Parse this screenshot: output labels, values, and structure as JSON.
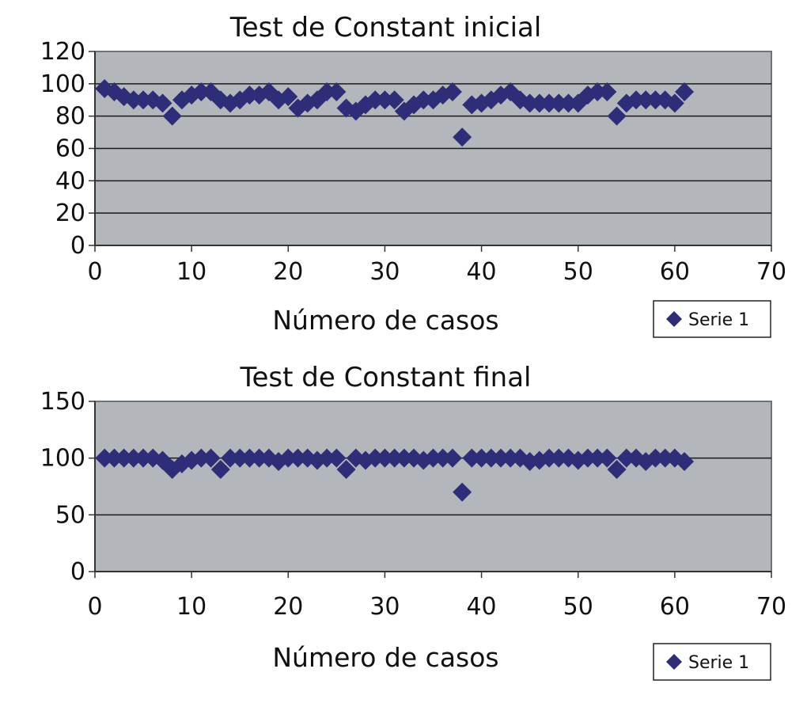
{
  "charts": [
    {
      "chart_data": {
        "type": "scatter",
        "title": "Test de Constant inicial",
        "xlabel": "Número de casos",
        "ylabel": "",
        "xlim": [
          0,
          70
        ],
        "ylim": [
          0,
          120
        ],
        "xticks": [
          "0",
          "10",
          "20",
          "30",
          "40",
          "50",
          "60",
          "70"
        ],
        "yticks": [
          "0",
          "20",
          "40",
          "60",
          "80",
          "100",
          "120"
        ],
        "grid": "horizontal",
        "legend_position": "bottom-right",
        "series": [
          {
            "name": "Serie 1",
            "color": "#2e2e78",
            "marker": "diamond",
            "points": [
              [
                1,
                97
              ],
              [
                2,
                95
              ],
              [
                3,
                92
              ],
              [
                4,
                90
              ],
              [
                5,
                90
              ],
              [
                6,
                90
              ],
              [
                7,
                88
              ],
              [
                8,
                80
              ],
              [
                9,
                90
              ],
              [
                10,
                93
              ],
              [
                11,
                95
              ],
              [
                12,
                95
              ],
              [
                13,
                90
              ],
              [
                14,
                88
              ],
              [
                15,
                90
              ],
              [
                16,
                93
              ],
              [
                17,
                93
              ],
              [
                18,
                95
              ],
              [
                19,
                90
              ],
              [
                20,
                92
              ],
              [
                21,
                85
              ],
              [
                22,
                88
              ],
              [
                23,
                90
              ],
              [
                24,
                95
              ],
              [
                25,
                95
              ],
              [
                26,
                85
              ],
              [
                27,
                83
              ],
              [
                28,
                87
              ],
              [
                29,
                90
              ],
              [
                30,
                90
              ],
              [
                31,
                90
              ],
              [
                32,
                83
              ],
              [
                33,
                87
              ],
              [
                34,
                90
              ],
              [
                35,
                90
              ],
              [
                36,
                93
              ],
              [
                37,
                95
              ],
              [
                38,
                67
              ],
              [
                39,
                87
              ],
              [
                40,
                88
              ],
              [
                41,
                90
              ],
              [
                42,
                93
              ],
              [
                43,
                95
              ],
              [
                44,
                90
              ],
              [
                45,
                88
              ],
              [
                46,
                88
              ],
              [
                47,
                88
              ],
              [
                48,
                88
              ],
              [
                49,
                88
              ],
              [
                50,
                88
              ],
              [
                51,
                93
              ],
              [
                52,
                95
              ],
              [
                53,
                95
              ],
              [
                54,
                80
              ],
              [
                55,
                88
              ],
              [
                56,
                90
              ],
              [
                57,
                90
              ],
              [
                58,
                90
              ],
              [
                59,
                90
              ],
              [
                60,
                88
              ],
              [
                61,
                95
              ]
            ]
          }
        ]
      }
    },
    {
      "chart_data": {
        "type": "scatter",
        "title": "Test de Constant final",
        "xlabel": "Número de casos",
        "ylabel": "",
        "xlim": [
          0,
          70
        ],
        "ylim": [
          0,
          150
        ],
        "xticks": [
          "0",
          "10",
          "20",
          "30",
          "40",
          "50",
          "60",
          "70"
        ],
        "yticks": [
          "0",
          "50",
          "100",
          "150"
        ],
        "grid": "horizontal",
        "legend_position": "bottom-right",
        "series": [
          {
            "name": "Serie 1",
            "color": "#2e2e78",
            "marker": "diamond",
            "points": [
              [
                1,
                100
              ],
              [
                2,
                100
              ],
              [
                3,
                100
              ],
              [
                4,
                100
              ],
              [
                5,
                100
              ],
              [
                6,
                100
              ],
              [
                7,
                98
              ],
              [
                8,
                90
              ],
              [
                9,
                95
              ],
              [
                10,
                98
              ],
              [
                11,
                100
              ],
              [
                12,
                100
              ],
              [
                13,
                90
              ],
              [
                14,
                100
              ],
              [
                15,
                100
              ],
              [
                16,
                100
              ],
              [
                17,
                100
              ],
              [
                18,
                100
              ],
              [
                19,
                97
              ],
              [
                20,
                100
              ],
              [
                21,
                100
              ],
              [
                22,
                100
              ],
              [
                23,
                98
              ],
              [
                24,
                100
              ],
              [
                25,
                100
              ],
              [
                26,
                90
              ],
              [
                27,
                100
              ],
              [
                28,
                98
              ],
              [
                29,
                100
              ],
              [
                30,
                100
              ],
              [
                31,
                100
              ],
              [
                32,
                100
              ],
              [
                33,
                100
              ],
              [
                34,
                98
              ],
              [
                35,
                100
              ],
              [
                36,
                100
              ],
              [
                37,
                100
              ],
              [
                38,
                70
              ],
              [
                39,
                100
              ],
              [
                40,
                100
              ],
              [
                41,
                100
              ],
              [
                42,
                100
              ],
              [
                43,
                100
              ],
              [
                44,
                100
              ],
              [
                45,
                97
              ],
              [
                46,
                98
              ],
              [
                47,
                100
              ],
              [
                48,
                100
              ],
              [
                49,
                100
              ],
              [
                50,
                98
              ],
              [
                51,
                100
              ],
              [
                52,
                100
              ],
              [
                53,
                100
              ],
              [
                54,
                90
              ],
              [
                55,
                100
              ],
              [
                56,
                100
              ],
              [
                57,
                97
              ],
              [
                58,
                100
              ],
              [
                59,
                100
              ],
              [
                60,
                100
              ],
              [
                61,
                97
              ]
            ]
          }
        ]
      }
    }
  ]
}
